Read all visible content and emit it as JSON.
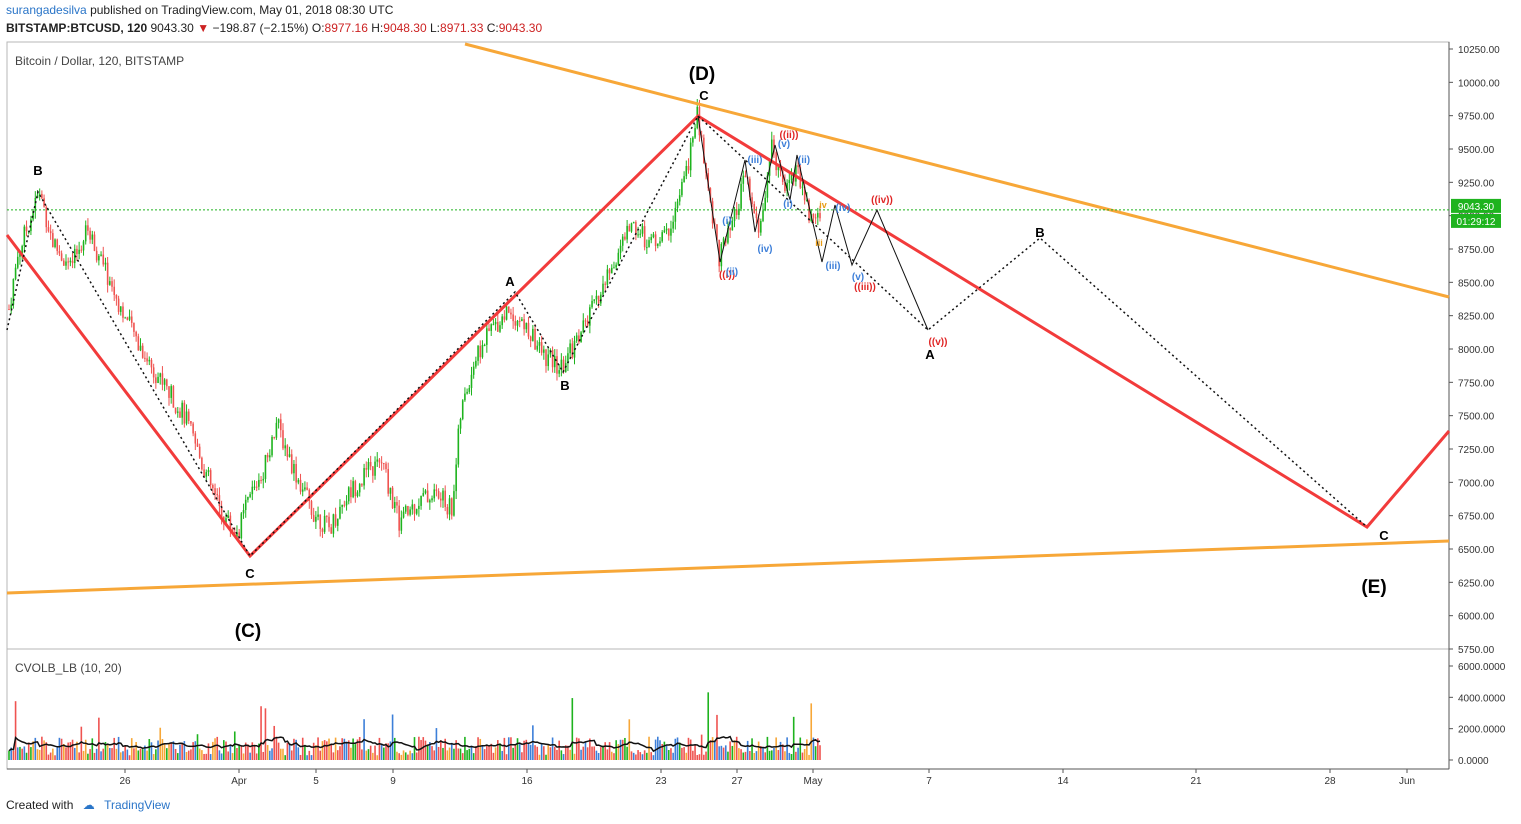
{
  "header": {
    "user": "surangadesilva",
    "published": "published on TradingView.com, May 01, 2018 08:30 UTC",
    "symbol": "BITSTAMP:BTCUSD, 120",
    "last": "9043.30",
    "change": "−198.87 (−2.15%)",
    "o_label": "O:",
    "o": "8977.16",
    "h_label": "H:",
    "h": "9048.30",
    "l_label": "L:",
    "l": "8971.33",
    "c_label": "C:",
    "c": "9043.30"
  },
  "main_pane": {
    "legend": "Bitcoin / Dollar, 120, BITSTAMP",
    "price_tag": "9043.30",
    "countdown_tag": "01:29:12"
  },
  "volume_pane": {
    "legend": "CVOLB_LB (10, 20)"
  },
  "footer": {
    "created": "Created with",
    "brand": "TradingView"
  },
  "colors": {
    "up": "#26a69a",
    "down": "#ef5350",
    "trend_red": "#f23b3b",
    "triangle_orange": "#f7a738",
    "price_line": "#1eb31e",
    "wave_blue": "#3d7fd9",
    "wave_red": "#e02525",
    "wave_orange": "#e89b14"
  },
  "chart_data": {
    "type": "candlestick",
    "y_axis": {
      "ticks": [
        "10250.00",
        "10000.00",
        "9750.00",
        "9500.00",
        "9250.00",
        "9000.00",
        "8750.00",
        "8500.00",
        "8250.00",
        "8000.00",
        "7750.00",
        "7500.00",
        "7250.00",
        "7000.00",
        "6750.00",
        "6500.00",
        "6250.00",
        "6000.00",
        "5750.00"
      ],
      "range": [
        5750,
        10300
      ]
    },
    "x_axis": {
      "ticks": [
        "26",
        "Apr",
        "5",
        "9",
        "16",
        "23",
        "27",
        "May",
        "7",
        "14",
        "21",
        "28",
        "Jun"
      ]
    },
    "volume_axis": {
      "ticks": [
        "6000.0000",
        "4000.0000",
        "2000.0000",
        "0.0000"
      ],
      "range": [
        0,
        6500
      ]
    },
    "last_price": 9043.3,
    "price_path": [
      {
        "t": 0,
        "p": 8300
      },
      {
        "t": 2,
        "p": 8700
      },
      {
        "t": 5,
        "p": 9000
      },
      {
        "t": 7,
        "p": 9180
      },
      {
        "t": 10,
        "p": 8800
      },
      {
        "t": 14,
        "p": 8600
      },
      {
        "t": 18,
        "p": 8900
      },
      {
        "t": 23,
        "p": 8500
      },
      {
        "t": 27,
        "p": 8200
      },
      {
        "t": 32,
        "p": 7900
      },
      {
        "t": 36,
        "p": 7700
      },
      {
        "t": 40,
        "p": 7500
      },
      {
        "t": 44,
        "p": 7150
      },
      {
        "t": 48,
        "p": 6800
      },
      {
        "t": 52,
        "p": 6600
      },
      {
        "t": 55,
        "p": 6900
      },
      {
        "t": 58,
        "p": 7100
      },
      {
        "t": 61,
        "p": 7450
      },
      {
        "t": 65,
        "p": 7100
      },
      {
        "t": 69,
        "p": 6800
      },
      {
        "t": 73,
        "p": 6650
      },
      {
        "t": 77,
        "p": 6900
      },
      {
        "t": 81,
        "p": 7050
      },
      {
        "t": 85,
        "p": 7150
      },
      {
        "t": 89,
        "p": 6700
      },
      {
        "t": 93,
        "p": 6850
      },
      {
        "t": 97,
        "p": 6920
      },
      {
        "t": 101,
        "p": 6800
      },
      {
        "t": 103,
        "p": 7500
      },
      {
        "t": 106,
        "p": 7900
      },
      {
        "t": 110,
        "p": 8150
      },
      {
        "t": 114,
        "p": 8300
      },
      {
        "t": 118,
        "p": 8150
      },
      {
        "t": 122,
        "p": 7950
      },
      {
        "t": 126,
        "p": 7850
      },
      {
        "t": 130,
        "p": 8100
      },
      {
        "t": 134,
        "p": 8350
      },
      {
        "t": 138,
        "p": 8650
      },
      {
        "t": 142,
        "p": 8950
      },
      {
        "t": 146,
        "p": 8800
      },
      {
        "t": 150,
        "p": 8850
      },
      {
        "t": 154,
        "p": 9250
      },
      {
        "t": 157,
        "p": 9750
      },
      {
        "t": 160,
        "p": 9100
      },
      {
        "t": 162,
        "p": 8700
      },
      {
        "t": 165,
        "p": 8900
      },
      {
        "t": 168,
        "p": 9300
      },
      {
        "t": 171,
        "p": 8850
      },
      {
        "t": 174,
        "p": 9500
      },
      {
        "t": 177,
        "p": 9250
      },
      {
        "t": 180,
        "p": 9350
      },
      {
        "t": 183,
        "p": 8950
      },
      {
        "t": 185,
        "p": 9043
      }
    ],
    "series": [
      {
        "name": "(C)",
        "points": [
          [
            "2018-03-22",
            8830
          ],
          [
            "2018-04-01",
            6440
          ]
        ]
      },
      {
        "name": "(D)",
        "points": [
          [
            "2018-04-01",
            6440
          ],
          [
            "2018-04-24",
            9760
          ]
        ]
      },
      {
        "name": "(E)",
        "points": [
          [
            "2018-04-24",
            9760
          ],
          [
            "2018-05-30",
            6660
          ],
          [
            "2018-06-02",
            7400
          ]
        ]
      }
    ],
    "annotations": [
      {
        "text": "B",
        "color": "black"
      },
      {
        "text": "C",
        "color": "black"
      },
      {
        "text": "(C)",
        "color": "black"
      },
      {
        "text": "A",
        "color": "black"
      },
      {
        "text": "B",
        "color": "black"
      },
      {
        "text": "(D)",
        "color": "black"
      },
      {
        "text": "C",
        "color": "black"
      },
      {
        "text": "((ii))",
        "color": "red"
      },
      {
        "text": "((i))",
        "color": "red"
      },
      {
        "text": "((iii))",
        "color": "red"
      },
      {
        "text": "((iv))",
        "color": "red"
      },
      {
        "text": "((v))",
        "color": "red"
      },
      {
        "text": "(i)",
        "color": "blue"
      },
      {
        "text": "(ii)",
        "color": "blue"
      },
      {
        "text": "(iii)",
        "color": "blue"
      },
      {
        "text": "(iv)",
        "color": "blue"
      },
      {
        "text": "(v)",
        "color": "blue"
      },
      {
        "text": "(i)",
        "color": "blue"
      },
      {
        "text": "(ii)",
        "color": "blue"
      },
      {
        "text": "(iii)",
        "color": "blue"
      },
      {
        "text": "(iv)",
        "color": "blue"
      },
      {
        "text": "(v)",
        "color": "blue"
      },
      {
        "text": "iii",
        "color": "orange"
      },
      {
        "text": "iv",
        "color": "orange"
      },
      {
        "text": "A",
        "color": "black"
      },
      {
        "text": "B",
        "color": "black"
      },
      {
        "text": "C",
        "color": "black"
      },
      {
        "text": "(E)",
        "color": "black"
      }
    ]
  }
}
